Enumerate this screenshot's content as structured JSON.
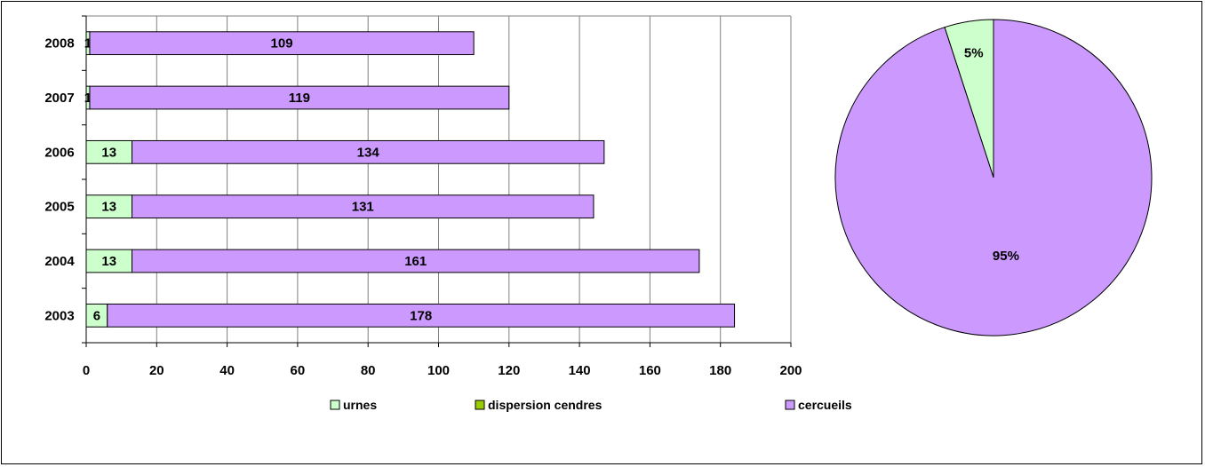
{
  "chart_data": [
    {
      "type": "bar",
      "orientation": "horizontal",
      "stacked": true,
      "categories": [
        "2008",
        "2007",
        "2006",
        "2005",
        "2004",
        "2003"
      ],
      "series": [
        {
          "name": "urnes",
          "color": "#ccffcc",
          "values": [
            1,
            1,
            13,
            13,
            13,
            6
          ],
          "labels": [
            "1",
            "1",
            "13",
            "13",
            "13",
            "6"
          ]
        },
        {
          "name": "dispersion cendres",
          "color": "#99cc00",
          "values": [
            0,
            0,
            0,
            0,
            0,
            0
          ],
          "labels": [
            "",
            "",
            "",
            "",
            "",
            ""
          ]
        },
        {
          "name": "cercueils",
          "color": "#cc99ff",
          "values": [
            109,
            119,
            134,
            131,
            161,
            178
          ],
          "labels": [
            "109",
            "119",
            "134",
            "131",
            "161",
            "178"
          ]
        }
      ],
      "xlim": [
        0,
        200
      ],
      "xticks": [
        "0",
        "20",
        "40",
        "60",
        "80",
        "100",
        "120",
        "140",
        "160",
        "180",
        "200"
      ],
      "grid": "vertical",
      "legend": "bottom"
    },
    {
      "type": "pie",
      "slices": [
        {
          "name": "urnes",
          "value": 5,
          "label": "5%",
          "color": "#ccffcc"
        },
        {
          "name": "cercueils",
          "value": 95,
          "label": "95%",
          "color": "#cc99ff"
        }
      ]
    }
  ]
}
